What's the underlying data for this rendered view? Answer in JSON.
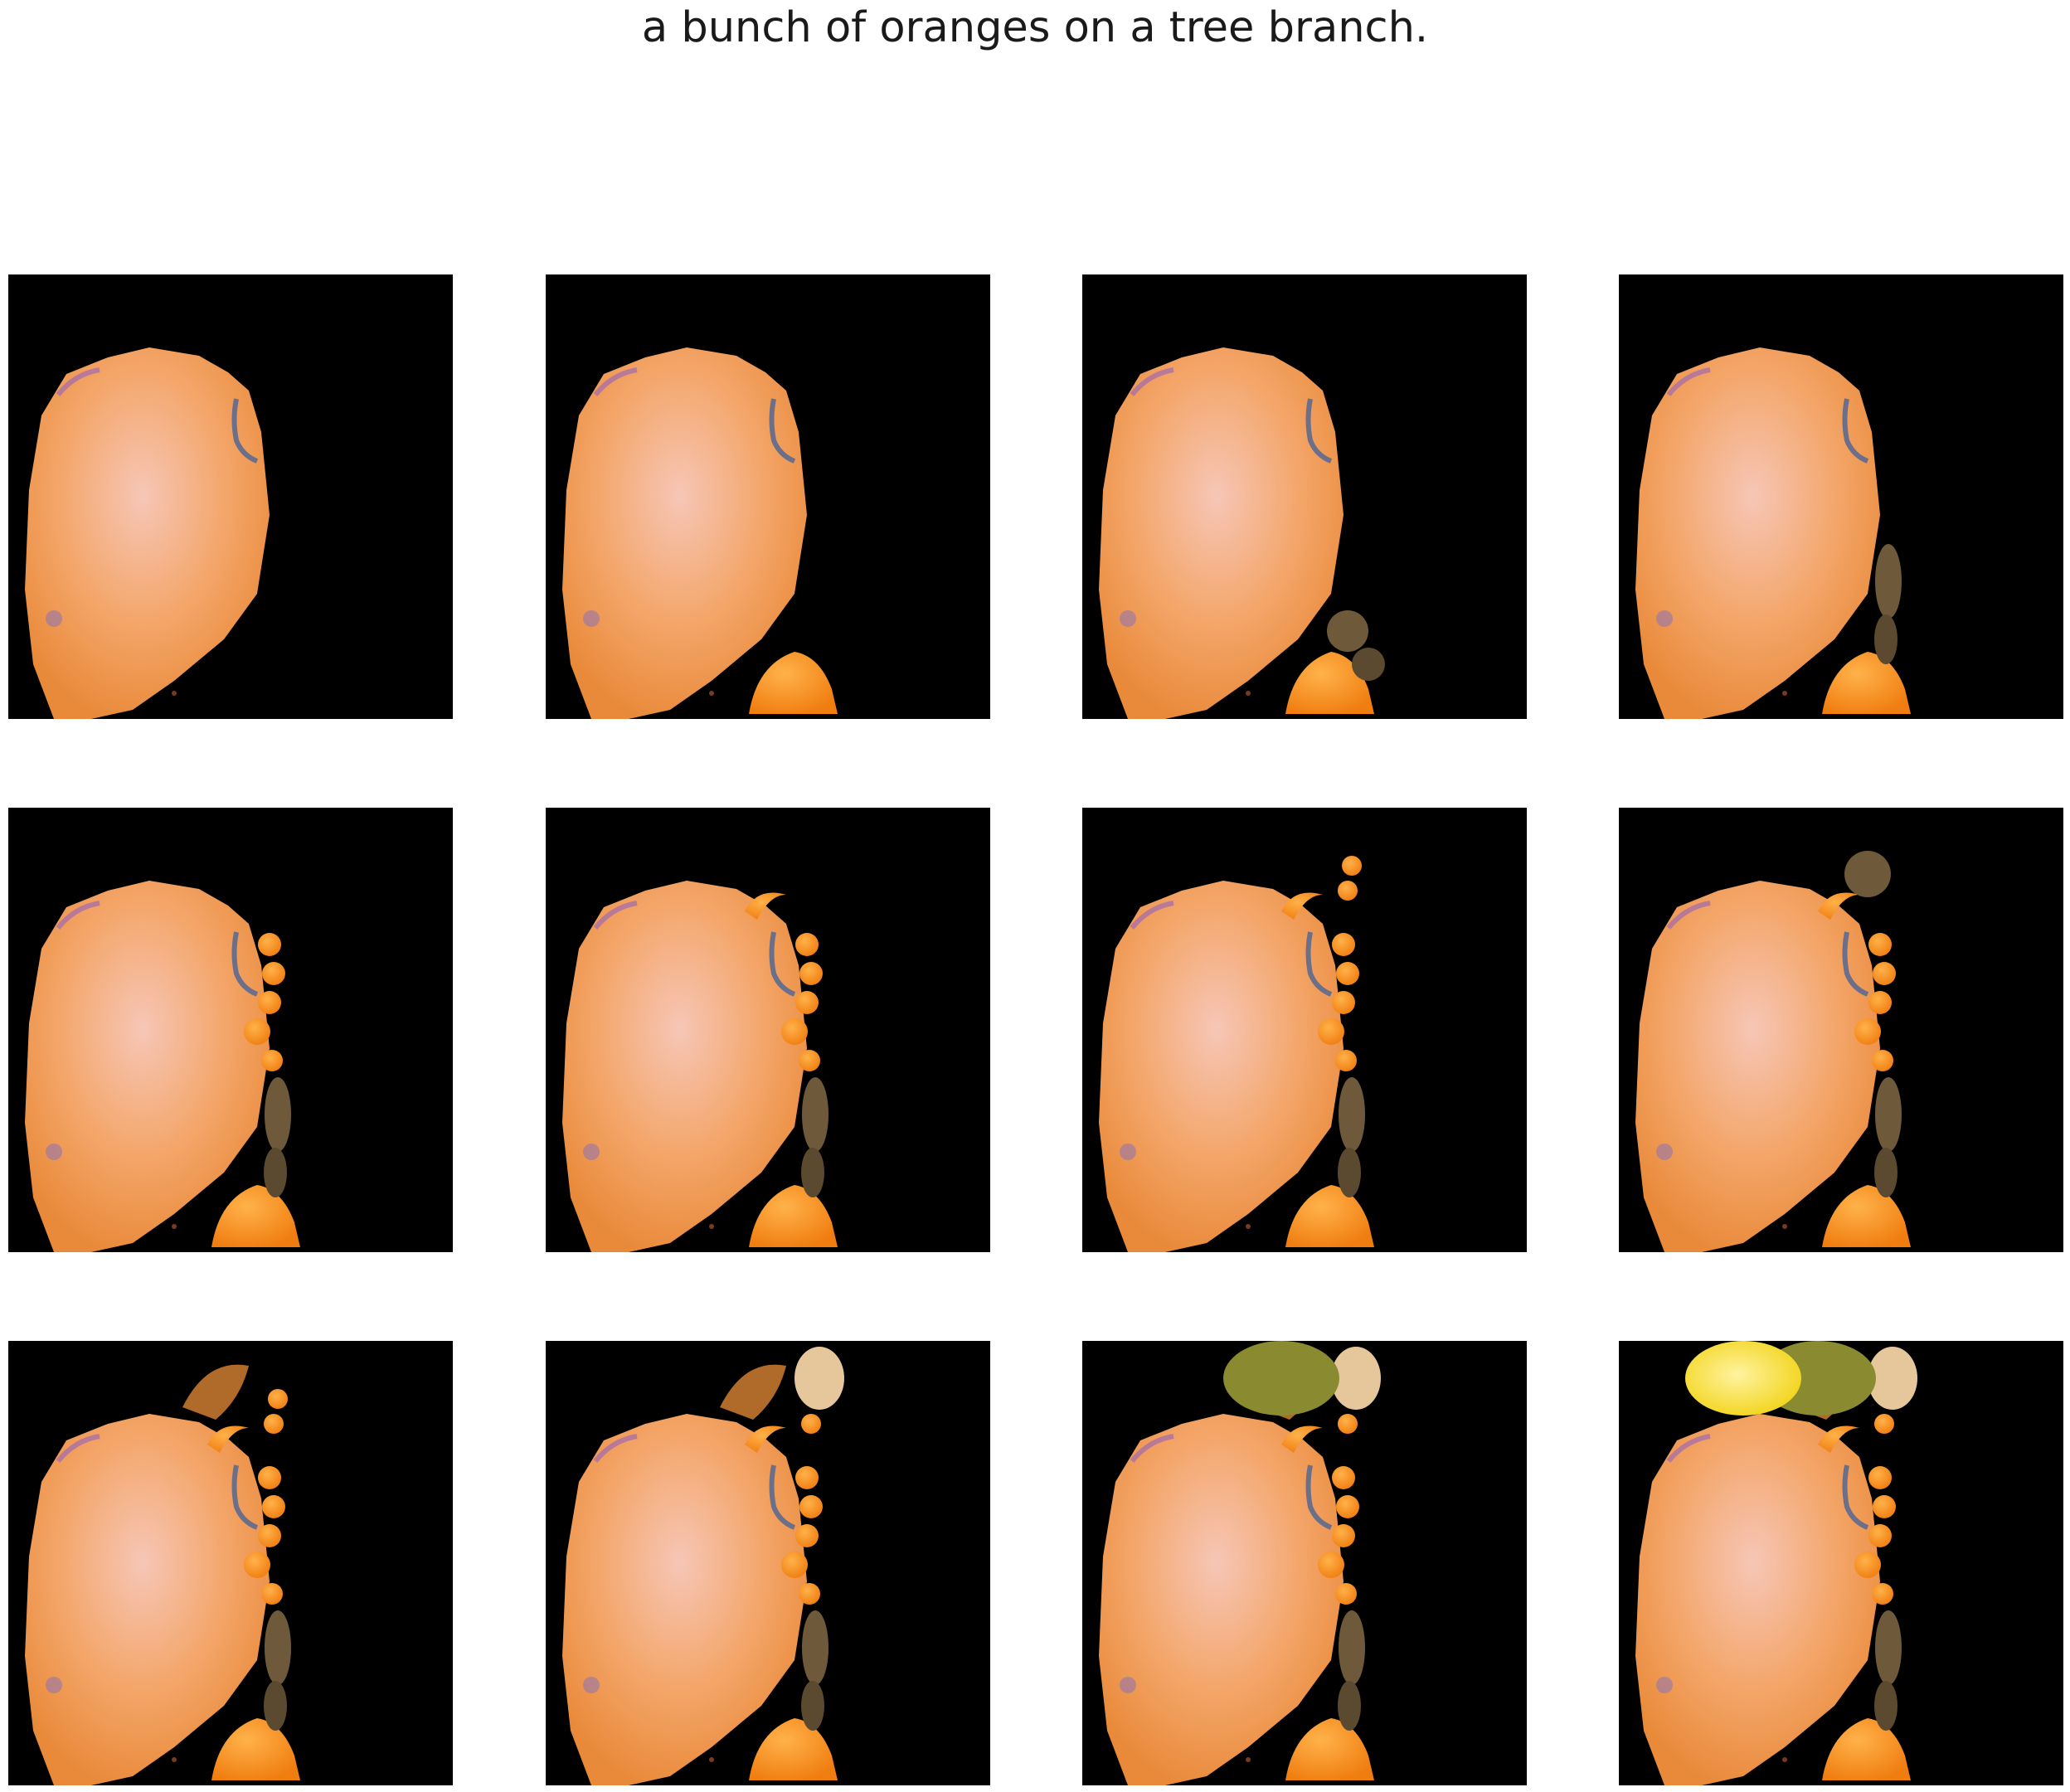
{
  "figure": {
    "title": "a bunch of oranges on a tree branch.",
    "rows": 3,
    "cols": 4,
    "background": "#000000",
    "frames": [
      {
        "extras": []
      },
      {
        "extras": [
          "orange-slice-bottom"
        ]
      },
      {
        "extras": [
          "orange-slice-bottom",
          "kiwi-bottom"
        ]
      },
      {
        "extras": [
          "orange-slice-bottom",
          "kiwi-right"
        ]
      },
      {
        "extras": [
          "orange-slice-bottom",
          "kiwi-right",
          "mandarins-right"
        ]
      },
      {
        "extras": [
          "orange-slice-bottom",
          "kiwi-right",
          "mandarins-right",
          "peel-top"
        ]
      },
      {
        "extras": [
          "orange-slice-bottom",
          "kiwi-right",
          "mandarins-right",
          "peel-top",
          "mandarins-top"
        ]
      },
      {
        "extras": [
          "orange-slice-bottom",
          "kiwi-right",
          "mandarins-right",
          "peel-top",
          "kiwi-top"
        ]
      },
      {
        "extras": [
          "orange-slice-bottom",
          "kiwi-right",
          "mandarins-right",
          "peel-top",
          "mandarins-top",
          "peel-upper"
        ]
      },
      {
        "extras": [
          "orange-slice-bottom",
          "kiwi-right",
          "mandarins-right",
          "peel-top",
          "mandarins-top",
          "peel-upper",
          "lemon-top"
        ]
      },
      {
        "extras": [
          "orange-slice-bottom",
          "kiwi-right",
          "mandarins-right",
          "peel-top",
          "mandarins-top",
          "peel-upper",
          "lemon-top",
          "lime-top"
        ]
      },
      {
        "extras": [
          "orange-slice-bottom",
          "kiwi-right",
          "mandarins-right",
          "peel-top",
          "mandarins-top",
          "peel-upper",
          "lemon-top",
          "lime-top",
          "grapefruit-top"
        ]
      }
    ],
    "colors": {
      "orange_light": "#f6c6b6",
      "orange_mid": "#f4a66a",
      "orange_dark": "#e98a3a",
      "mandarin": "#f07d10",
      "kiwi": "#6e5a3a",
      "lime": "#8a8a30",
      "lemon": "#f2d41a"
    }
  }
}
